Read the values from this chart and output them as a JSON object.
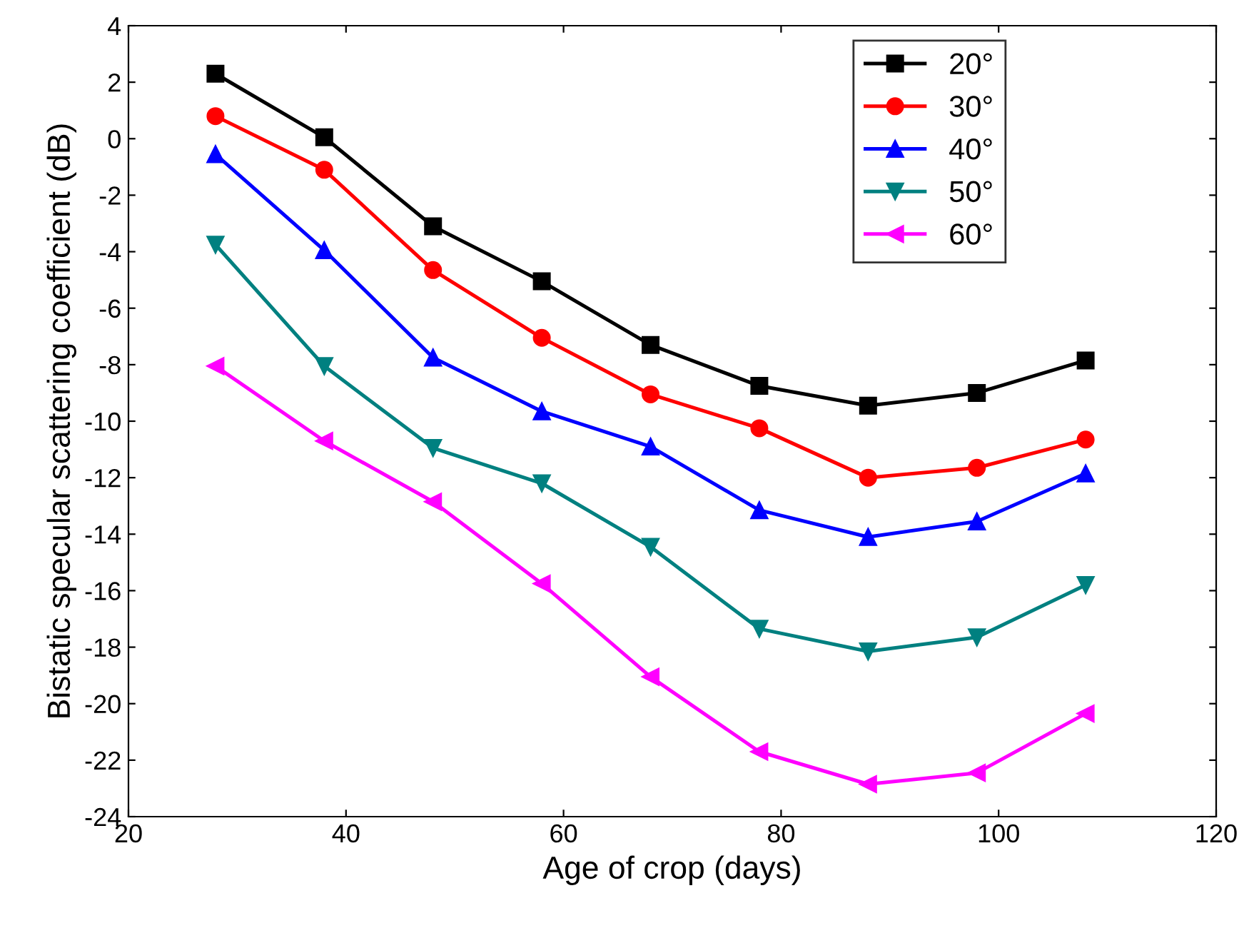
{
  "chart_data": {
    "type": "line",
    "xlabel": "Age of crop (days)",
    "ylabel": "Bistatic specular scattering coefficient (dB)",
    "x": [
      28,
      38,
      48,
      58,
      68,
      78,
      88,
      98,
      108
    ],
    "series": [
      {
        "name": "20°",
        "color": "#000000",
        "marker": "square",
        "values": [
          2.3,
          0.05,
          -3.1,
          -5.05,
          -7.3,
          -8.75,
          -9.45,
          -9.0,
          -7.85
        ]
      },
      {
        "name": "30°",
        "color": "#ff0000",
        "marker": "circle",
        "values": [
          0.8,
          -1.1,
          -4.65,
          -7.05,
          -9.05,
          -10.25,
          -12.0,
          -11.65,
          -10.65
        ]
      },
      {
        "name": "40°",
        "color": "#0000ff",
        "marker": "triangle",
        "values": [
          -0.55,
          -3.95,
          -7.75,
          -9.65,
          -10.9,
          -13.15,
          -14.1,
          -13.55,
          -11.85
        ]
      },
      {
        "name": "50°",
        "color": "#008080",
        "marker": "triangle-down",
        "values": [
          -3.75,
          -8.05,
          -10.95,
          -12.2,
          -14.45,
          -17.35,
          -18.15,
          -17.65,
          -15.8
        ]
      },
      {
        "name": "60°",
        "color": "#ff00ff",
        "marker": "triangle-left",
        "values": [
          -8.05,
          -10.7,
          -12.85,
          -15.75,
          -19.05,
          -21.7,
          -22.85,
          -22.45,
          -20.35
        ]
      }
    ],
    "xlim": [
      20,
      120
    ],
    "xticks": [
      20,
      40,
      60,
      80,
      100,
      120
    ],
    "ylim": [
      -24,
      4
    ],
    "yticks": [
      -24,
      -22,
      -20,
      -18,
      -16,
      -14,
      -12,
      -10,
      -8,
      -6,
      -4,
      -2,
      0,
      2,
      4
    ],
    "legend": "top right",
    "grid": false,
    "line_style": "solid"
  }
}
